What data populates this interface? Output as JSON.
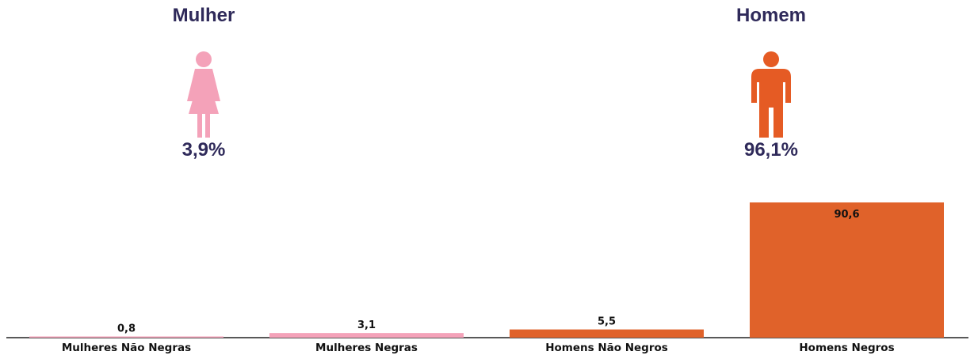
{
  "summary": {
    "female": {
      "label": "Mulher",
      "percent": "3,9%",
      "color": "#f4a2b9",
      "icon": "female-person-icon"
    },
    "male": {
      "label": "Homem",
      "percent": "96,1%",
      "color": "#e55b24",
      "icon": "male-person-icon"
    }
  },
  "text_color": "#2f2a5a",
  "chart_data": {
    "type": "bar",
    "categories": [
      "Mulheres Não Negras",
      "Mulheres Negras",
      "Homens Não Negros",
      "Homens Negros"
    ],
    "values": [
      0.8,
      3.1,
      5.5,
      90.6
    ],
    "value_labels": [
      "0,8",
      "3,1",
      "5,5",
      "90,6"
    ],
    "colors": [
      "#f4a2b9",
      "#f4a2b9",
      "#e0622a",
      "#e0622a"
    ],
    "ylim": [
      0,
      100
    ],
    "grid": false,
    "title": "",
    "xlabel": "",
    "ylabel": ""
  }
}
